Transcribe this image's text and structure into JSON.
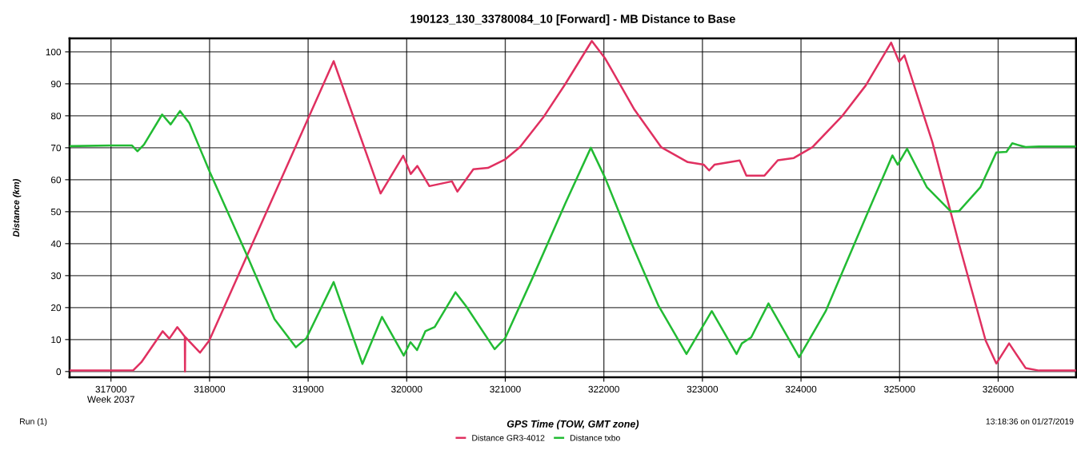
{
  "chart_data": {
    "type": "line",
    "title": "190123_130_33780084_10 [Forward] - MB Distance to Base",
    "xlabel": "GPS Time (TOW, GMT zone)",
    "ylabel": "Distance (km)",
    "xlim": [
      316580,
      326790
    ],
    "ylim": [
      -1.8,
      104.2
    ],
    "xticks": [
      {
        "value": 317000,
        "label": "317000\nWeek 2037"
      },
      318000,
      319000,
      320000,
      321000,
      322000,
      323000,
      324000,
      325000,
      326000
    ],
    "yticks": [
      0,
      10,
      20,
      30,
      40,
      50,
      60,
      70,
      80,
      90,
      100
    ],
    "grid": true,
    "legend": "bottom",
    "marker": "none",
    "line_style": "solid",
    "annotations": [
      "Run (1)",
      "13:18:36 on 01/27/2019"
    ],
    "series": [
      {
        "name": "Distance GR3-4012",
        "color": "#e03060",
        "x": [
          316580,
          317000,
          317227,
          317308,
          317524,
          317592,
          317673,
          317749,
          317751,
          317753,
          317903,
          317997,
          319259,
          319735,
          319965,
          320041,
          320108,
          320230,
          320459,
          320514,
          320676,
          320824,
          321000,
          321149,
          321392,
          321608,
          321878,
          322014,
          322311,
          322581,
          322851,
          323014,
          323068,
          323122,
          323378,
          323446,
          323630,
          323765,
          323927,
          324116,
          324414,
          324657,
          324914,
          324995,
          325049,
          325332,
          325603,
          325873,
          325981,
          326111,
          326278,
          326414,
          326786
        ],
        "values": [
          0.3,
          0.3,
          0.4,
          2.9,
          12.6,
          10.3,
          13.9,
          10.9,
          0,
          10.8,
          5.9,
          9.7,
          97.1,
          55.7,
          67.5,
          61.8,
          64.3,
          58.0,
          59.5,
          56.3,
          63.3,
          63.7,
          66.4,
          70.2,
          79.8,
          89.9,
          103.4,
          97.9,
          81.9,
          70.2,
          65.5,
          64.7,
          62.9,
          64.7,
          66.0,
          61.3,
          61.3,
          66.1,
          66.8,
          70.2,
          79.8,
          89.5,
          102.9,
          96.9,
          98.9,
          71.8,
          39.9,
          9.7,
          2.5,
          8.8,
          1.1,
          0.3,
          0.3
        ]
      },
      {
        "name": "Distance txbo",
        "color": "#22bb33",
        "x": [
          316580,
          317000,
          317214,
          317268,
          317335,
          317519,
          317605,
          317700,
          317795,
          318000,
          318389,
          318659,
          318876,
          318984,
          319259,
          319551,
          319749,
          319970,
          320038,
          320105,
          320189,
          320284,
          320495,
          320608,
          320892,
          321000,
          321284,
          321608,
          321868,
          322014,
          322284,
          322554,
          322838,
          323095,
          323346,
          323400,
          323495,
          323670,
          323981,
          324251,
          324657,
          324927,
          324981,
          325076,
          325278,
          325522,
          325603,
          325819,
          325981,
          326084,
          326143,
          326278,
          326414,
          326786
        ],
        "values": [
          70.5,
          70.7,
          70.7,
          68.9,
          71.0,
          80.4,
          77.3,
          81.5,
          77.7,
          62.6,
          35.7,
          16.4,
          7.6,
          10.5,
          28.0,
          2.4,
          17.1,
          5.0,
          9.2,
          6.7,
          12.6,
          13.9,
          24.8,
          20.2,
          7.0,
          10.5,
          29.8,
          52.5,
          70.0,
          60.5,
          39.9,
          20.6,
          5.5,
          18.9,
          5.5,
          8.8,
          10.7,
          21.3,
          4.5,
          18.9,
          48.3,
          67.6,
          64.7,
          69.7,
          57.6,
          50.0,
          50.2,
          57.6,
          68.5,
          68.7,
          71.4,
          70.2,
          70.4,
          70.4
        ]
      }
    ]
  }
}
